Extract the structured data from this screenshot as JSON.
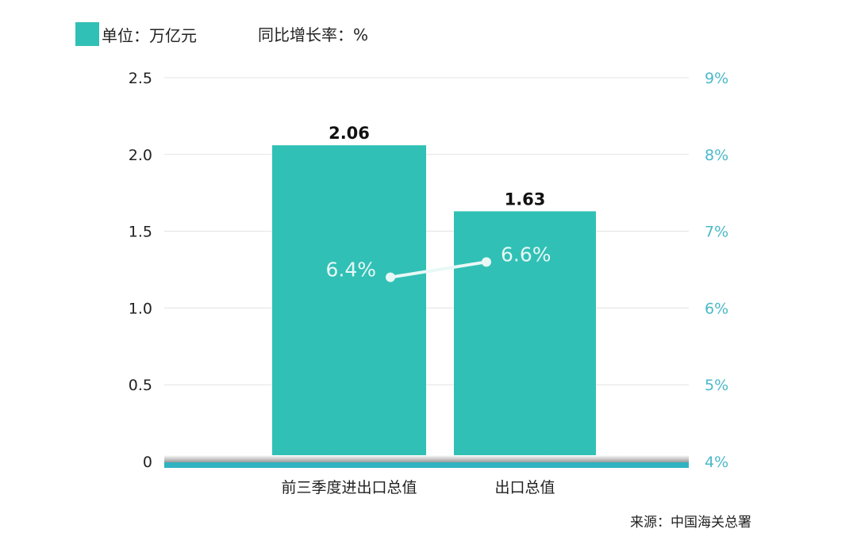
{
  "legend": {
    "bar_label": "单位：万亿元",
    "line_label": "同比增长率：%"
  },
  "source": "来源：中国海关总署",
  "colors": {
    "bar": "#31c0b5",
    "line": "#e8f8f6",
    "right_axis": "#4cb8c8",
    "baseline": "#2fb3c0"
  },
  "chart_data": {
    "type": "bar+line",
    "categories": [
      "前三季度进出口总值",
      "出口总值"
    ],
    "series": [
      {
        "name": "单位：万亿元",
        "type": "bar",
        "axis": "left",
        "values": [
          2.06,
          1.63
        ],
        "labels": [
          "2.06",
          "1.63"
        ]
      },
      {
        "name": "同比增长率：%",
        "type": "line",
        "axis": "right",
        "values": [
          6.4,
          6.6
        ],
        "labels": [
          "6.4%",
          "6.6%"
        ]
      }
    ],
    "left_axis": {
      "ylim": [
        0,
        2.5
      ],
      "ticks": [
        "0",
        "0.5",
        "1.0",
        "1.5",
        "2.0",
        "2.5"
      ]
    },
    "right_axis": {
      "ylim": [
        4,
        9
      ],
      "ticks": [
        "4%",
        "5%",
        "6%",
        "7%",
        "8%",
        "9%"
      ]
    },
    "grid": true
  }
}
